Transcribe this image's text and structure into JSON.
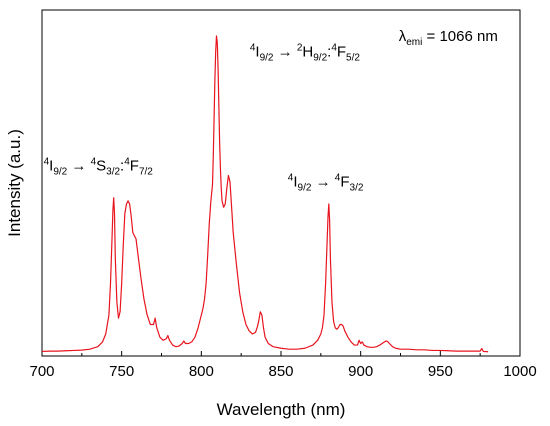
{
  "chart_data": {
    "type": "line",
    "title": "",
    "xlabel": "Wavelength (nm)",
    "ylabel": "Intensity (a.u.)",
    "xlim": [
      700,
      1000
    ],
    "ylim": [
      0,
      1.0
    ],
    "x_ticks": [
      700,
      750,
      800,
      850,
      900,
      950,
      1000
    ],
    "x_tick_labels": [
      "700",
      "750",
      "800",
      "850",
      "900",
      "950",
      "1000"
    ],
    "y_tick_labels": [],
    "grid": false,
    "legend": "none",
    "series": [
      {
        "color": "#e8141e",
        "x": [
          700,
          705,
          710,
          715,
          720,
          725,
          730,
          735,
          738,
          740,
          742,
          743,
          744,
          744.5,
          745,
          745.5,
          746,
          747,
          748,
          749,
          750,
          751,
          752,
          753,
          754,
          755,
          756,
          757,
          758,
          759,
          760,
          762,
          764,
          766,
          768,
          770,
          771,
          772,
          774,
          776,
          778,
          779,
          780,
          782,
          784,
          786,
          788,
          789,
          790,
          792,
          794,
          796,
          798,
          800,
          801,
          802,
          803,
          804,
          805,
          806,
          807,
          807.5,
          808,
          808.5,
          809,
          809.5,
          810,
          810.5,
          811,
          811.5,
          812,
          812.5,
          813,
          814,
          815,
          816,
          817,
          818,
          819,
          820,
          822,
          824,
          826,
          828,
          830,
          832,
          834,
          835,
          836,
          837,
          838,
          839,
          840,
          842,
          845,
          850,
          855,
          860,
          865,
          870,
          873,
          875,
          876,
          877,
          878,
          879,
          879.5,
          880,
          880.5,
          881,
          882,
          883,
          884,
          885,
          886,
          887,
          888,
          889,
          890,
          892,
          894,
          896,
          898,
          899,
          900,
          901,
          902,
          904,
          906,
          908,
          910,
          912,
          914,
          916,
          917,
          918,
          920,
          922,
          925,
          930,
          935,
          940,
          945,
          950,
          955,
          960,
          965,
          970,
          975,
          976,
          977,
          980
        ],
        "y": [
          0.005,
          0.006,
          0.006,
          0.007,
          0.008,
          0.009,
          0.012,
          0.02,
          0.035,
          0.06,
          0.12,
          0.22,
          0.37,
          0.45,
          0.49,
          0.44,
          0.3,
          0.16,
          0.11,
          0.13,
          0.22,
          0.34,
          0.44,
          0.47,
          0.48,
          0.47,
          0.43,
          0.38,
          0.37,
          0.36,
          0.32,
          0.24,
          0.17,
          0.12,
          0.09,
          0.09,
          0.11,
          0.08,
          0.05,
          0.04,
          0.045,
          0.055,
          0.04,
          0.025,
          0.02,
          0.022,
          0.03,
          0.038,
          0.03,
          0.03,
          0.035,
          0.05,
          0.08,
          0.12,
          0.14,
          0.17,
          0.22,
          0.31,
          0.41,
          0.48,
          0.53,
          0.62,
          0.74,
          0.86,
          0.95,
          1.0,
          0.98,
          0.9,
          0.78,
          0.66,
          0.58,
          0.52,
          0.48,
          0.46,
          0.47,
          0.52,
          0.56,
          0.54,
          0.46,
          0.38,
          0.28,
          0.19,
          0.13,
          0.09,
          0.07,
          0.06,
          0.065,
          0.08,
          0.1,
          0.13,
          0.12,
          0.08,
          0.05,
          0.03,
          0.02,
          0.015,
          0.012,
          0.012,
          0.015,
          0.025,
          0.04,
          0.06,
          0.08,
          0.12,
          0.22,
          0.36,
          0.43,
          0.47,
          0.42,
          0.3,
          0.16,
          0.1,
          0.08,
          0.075,
          0.08,
          0.09,
          0.09,
          0.085,
          0.07,
          0.05,
          0.035,
          0.025,
          0.025,
          0.04,
          0.03,
          0.035,
          0.025,
          0.02,
          0.018,
          0.018,
          0.02,
          0.025,
          0.032,
          0.038,
          0.036,
          0.03,
          0.02,
          0.015,
          0.012,
          0.012,
          0.01,
          0.01,
          0.008,
          0.008,
          0.007,
          0.006,
          0.006,
          0.006,
          0.006,
          0.014,
          0.005,
          0.004
        ]
      }
    ],
    "annotations": [
      {
        "name": "lambda-emi",
        "x": 955,
        "y": 0.985,
        "anchor": "middle",
        "base": "λ",
        "sub": "emi",
        "tail": " = 1066 nm"
      },
      {
        "name": "transition-810",
        "x": 865,
        "y": 0.935,
        "anchor": "middle",
        "parts": [
          [
            "sup",
            "4"
          ],
          [
            "t",
            "I"
          ],
          [
            "sub",
            "9/2"
          ],
          [
            "t",
            " → "
          ],
          [
            "sup",
            "2"
          ],
          [
            "t",
            "H"
          ],
          [
            "sub",
            "9/2"
          ],
          [
            "t",
            ":"
          ],
          [
            "sup",
            "4"
          ],
          [
            "t",
            "F"
          ],
          [
            "sub",
            "5/2"
          ]
        ]
      },
      {
        "name": "transition-745",
        "x": 701,
        "y": 0.575,
        "anchor": "start",
        "parts": [
          [
            "sup",
            "4"
          ],
          [
            "t",
            "I"
          ],
          [
            "sub",
            "9/2"
          ],
          [
            "t",
            " → "
          ],
          [
            "sup",
            "4"
          ],
          [
            "t",
            "S"
          ],
          [
            "sub",
            "3/2"
          ],
          [
            "t",
            ":"
          ],
          [
            "sup",
            "4"
          ],
          [
            "t",
            "F"
          ],
          [
            "sub",
            "7/2"
          ]
        ]
      },
      {
        "name": "transition-880",
        "x": 878,
        "y": 0.525,
        "anchor": "middle",
        "parts": [
          [
            "sup",
            "4"
          ],
          [
            "t",
            "I"
          ],
          [
            "sub",
            "9/2"
          ],
          [
            "t",
            " → "
          ],
          [
            "sup",
            "4"
          ],
          [
            "t",
            "F"
          ],
          [
            "sub",
            "3/2"
          ]
        ]
      }
    ]
  }
}
